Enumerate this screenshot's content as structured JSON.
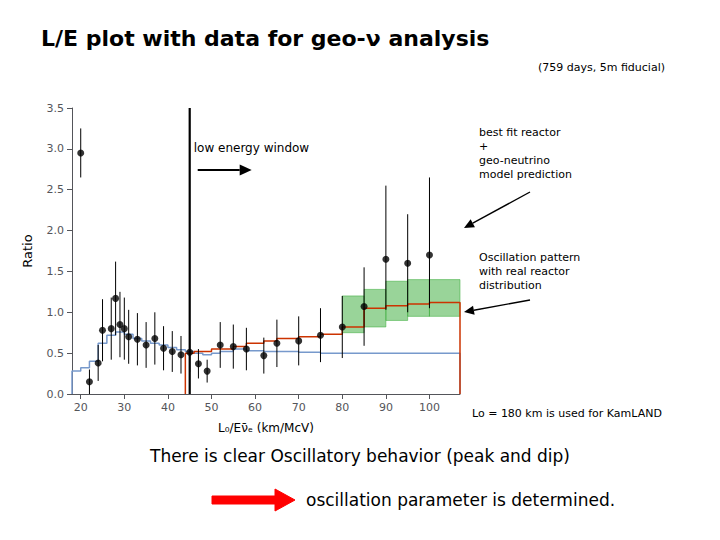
{
  "chart_data": {
    "type": "step",
    "title": "L/E plot with data for geo-ν analysis",
    "subtitle": "(759 days, 5m fiducial)",
    "xlabel": "L₀/Eν̄ₑ (km/McV)",
    "ylabel": "Ratio",
    "xlim": [
      18,
      107
    ],
    "ylim": [
      0,
      3.5
    ],
    "xticks": [
      20,
      30,
      40,
      50,
      60,
      70,
      80,
      90,
      100
    ],
    "yticks": [
      {
        "value": 0,
        "label": "0.0"
      },
      0.5,
      {
        "value": 1,
        "label": "1.0"
      },
      1.5,
      {
        "value": 2,
        "label": "2.0"
      },
      2.5,
      {
        "value": 3,
        "label": "3.0"
      },
      3.5
    ],
    "grid": false,
    "annotations": [
      "low energy window",
      "best fit reactor\n+\ngeo-neutrino\nmodel prediction",
      "Oscillation pattern\nwith real reactor\ndistribution",
      "Lo = 180 km is used for KamLAND",
      "There is clear Oscillatory behavior (peak and dip)",
      "oscillation parameter is determined."
    ],
    "series": [
      {
        "type": "step",
        "color": "#7799cc",
        "bins": [
          18,
          20,
          22,
          24,
          26,
          28,
          30,
          32,
          34,
          36,
          38,
          40,
          42,
          44,
          46,
          48,
          50,
          52,
          55,
          58,
          62,
          65,
          70,
          75,
          80,
          85,
          90,
          95,
          100,
          107
        ],
        "values": [
          0.28,
          0.32,
          0.4,
          0.62,
          0.72,
          0.76,
          0.73,
          0.68,
          0.65,
          0.62,
          0.6,
          0.57,
          0.54,
          0.52,
          0.5,
          0.48,
          0.5,
          0.52,
          0.55,
          0.53,
          0.52,
          0.52,
          0.51,
          0.5,
          0.5,
          0.5,
          0.5,
          0.5,
          0.5
        ]
      },
      {
        "type": "step",
        "color": "#cc3300",
        "bins": [
          44,
          46,
          50,
          55,
          58,
          62,
          65,
          70,
          75,
          80,
          85,
          90,
          95,
          100,
          107
        ],
        "values": [
          0.5,
          0.52,
          0.55,
          0.58,
          0.62,
          0.65,
          0.68,
          0.7,
          0.73,
          0.82,
          1.05,
          1.08,
          1.1,
          1.12
        ]
      },
      {
        "type": "band",
        "color": "#33aa33",
        "bins": [
          80,
          85,
          90,
          95,
          100,
          107
        ],
        "low": [
          0.75,
          0.82,
          0.9,
          0.95,
          0.95
        ],
        "high": [
          1.2,
          1.28,
          1.38,
          1.4,
          1.4
        ]
      },
      {
        "type": "scatter",
        "color": "#000000",
        "marker": "circle",
        "x": [
          20,
          22,
          24,
          25,
          27,
          28,
          29,
          30,
          31,
          33,
          35,
          37,
          39,
          41,
          43,
          45,
          47,
          49,
          52,
          55,
          58,
          62,
          65,
          70,
          75,
          80,
          85,
          90,
          95,
          100
        ],
        "values": [
          2.95,
          0.15,
          0.38,
          0.78,
          0.8,
          1.17,
          0.85,
          0.8,
          0.7,
          0.67,
          0.6,
          0.68,
          0.56,
          0.52,
          0.48,
          0.51,
          0.37,
          0.28,
          0.6,
          0.58,
          0.55,
          0.47,
          0.62,
          0.65,
          0.72,
          0.82,
          1.07,
          1.65,
          1.6,
          1.7
        ],
        "yerr_lo": [
          0.3,
          0.15,
          0.22,
          0.38,
          0.38,
          0.45,
          0.4,
          0.38,
          0.33,
          0.32,
          0.28,
          0.32,
          0.27,
          0.25,
          0.23,
          0.24,
          0.18,
          0.14,
          0.28,
          0.27,
          0.26,
          0.22,
          0.29,
          0.3,
          0.33,
          0.38,
          0.48,
          0.62,
          0.6,
          0.65
        ],
        "yerr_hi": [
          0.3,
          0.15,
          0.22,
          0.38,
          0.38,
          0.45,
          0.4,
          0.38,
          0.33,
          0.32,
          0.28,
          0.32,
          0.27,
          0.25,
          0.23,
          0.24,
          0.18,
          0.14,
          0.28,
          0.27,
          0.26,
          0.22,
          0.29,
          0.3,
          0.33,
          0.38,
          0.48,
          0.9,
          0.6,
          0.95
        ]
      },
      {
        "type": "vline",
        "color": "#000000",
        "x": 45
      }
    ]
  }
}
